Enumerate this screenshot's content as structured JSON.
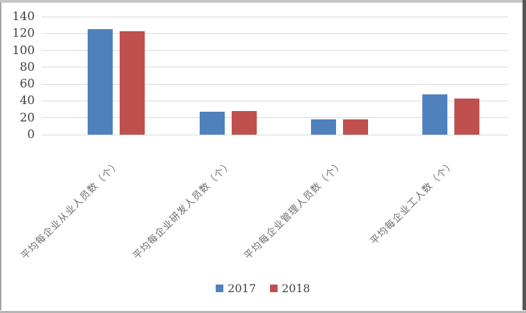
{
  "chart_data": {
    "type": "bar",
    "title": "",
    "xlabel": "",
    "ylabel": "",
    "categories": [
      "平均每企业从业人员数（个）",
      "平均每企业研发人员数（个）",
      "平均每企业管理人员数（个）",
      "平均每企业工人数（个）"
    ],
    "series": [
      {
        "name": "2017",
        "color": "#4F81BD",
        "values": [
          125,
          27,
          18,
          48
        ]
      },
      {
        "name": "2018",
        "color": "#C0504D",
        "values": [
          123,
          28,
          18,
          43
        ]
      }
    ],
    "ylim": [
      0,
      140
    ],
    "yticks": [
      0,
      20,
      40,
      60,
      80,
      100,
      120,
      140
    ],
    "grid": true,
    "gridline_color": "#d9d9d9",
    "legend_position": "bottom",
    "tick_label_color": "#444444",
    "category_label_color": "#6e6e6e"
  }
}
